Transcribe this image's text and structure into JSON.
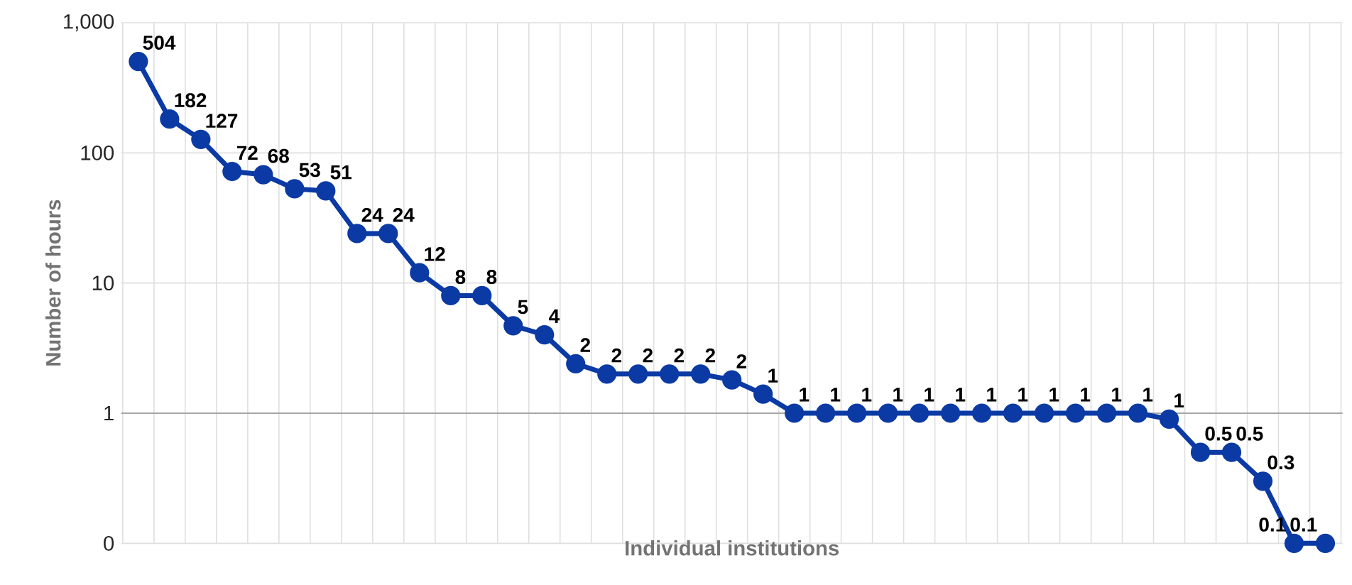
{
  "chart_data": {
    "type": "line",
    "xlabel": "Individual institutions",
    "ylabel": "Number of hours",
    "categories": [
      null,
      null,
      null,
      null,
      null,
      null,
      null,
      null,
      null,
      null,
      null,
      null,
      null,
      null,
      null,
      null,
      null,
      null,
      null,
      null,
      null,
      null,
      null,
      null,
      null,
      null,
      null,
      null,
      null,
      null,
      null,
      null,
      null,
      null,
      null,
      null,
      null,
      null,
      null
    ],
    "values": [
      504,
      182,
      127,
      72,
      68,
      53,
      51,
      24,
      24,
      12,
      8,
      8,
      4.7,
      4,
      2.4,
      2,
      2,
      2,
      2,
      1.8,
      1.4,
      1,
      1,
      1,
      1,
      1,
      1,
      1,
      1,
      1,
      1,
      1,
      1,
      0.9,
      0.5,
      0.5,
      0.3,
      0.1,
      0.1
    ],
    "value_labels": [
      "504",
      "182",
      "127",
      "72",
      "68",
      "53",
      "51",
      "24",
      "24",
      "12",
      "8",
      "8",
      "5",
      "4",
      "2",
      "2",
      "2",
      "2",
      "2",
      "2",
      "1",
      "1",
      "1",
      "1",
      "1",
      "1",
      "1",
      "1",
      "1",
      "1",
      "1",
      "1",
      "1",
      "1",
      "0.5",
      "0.5",
      "0.3",
      "0.1",
      "0.1"
    ],
    "color": "#0b3aa4",
    "marker": "circle",
    "line_style": "solid",
    "log": "y",
    "grid": true,
    "ylim": [
      0.1,
      1000
    ],
    "ref_lines": [
      {
        "axis": "y",
        "value": 1,
        "color": "#a6a6a6"
      }
    ],
    "yticks": [
      {
        "value": 0.1,
        "label": "0"
      },
      1,
      10,
      100,
      {
        "value": 1000,
        "label": "1,000"
      }
    ]
  }
}
